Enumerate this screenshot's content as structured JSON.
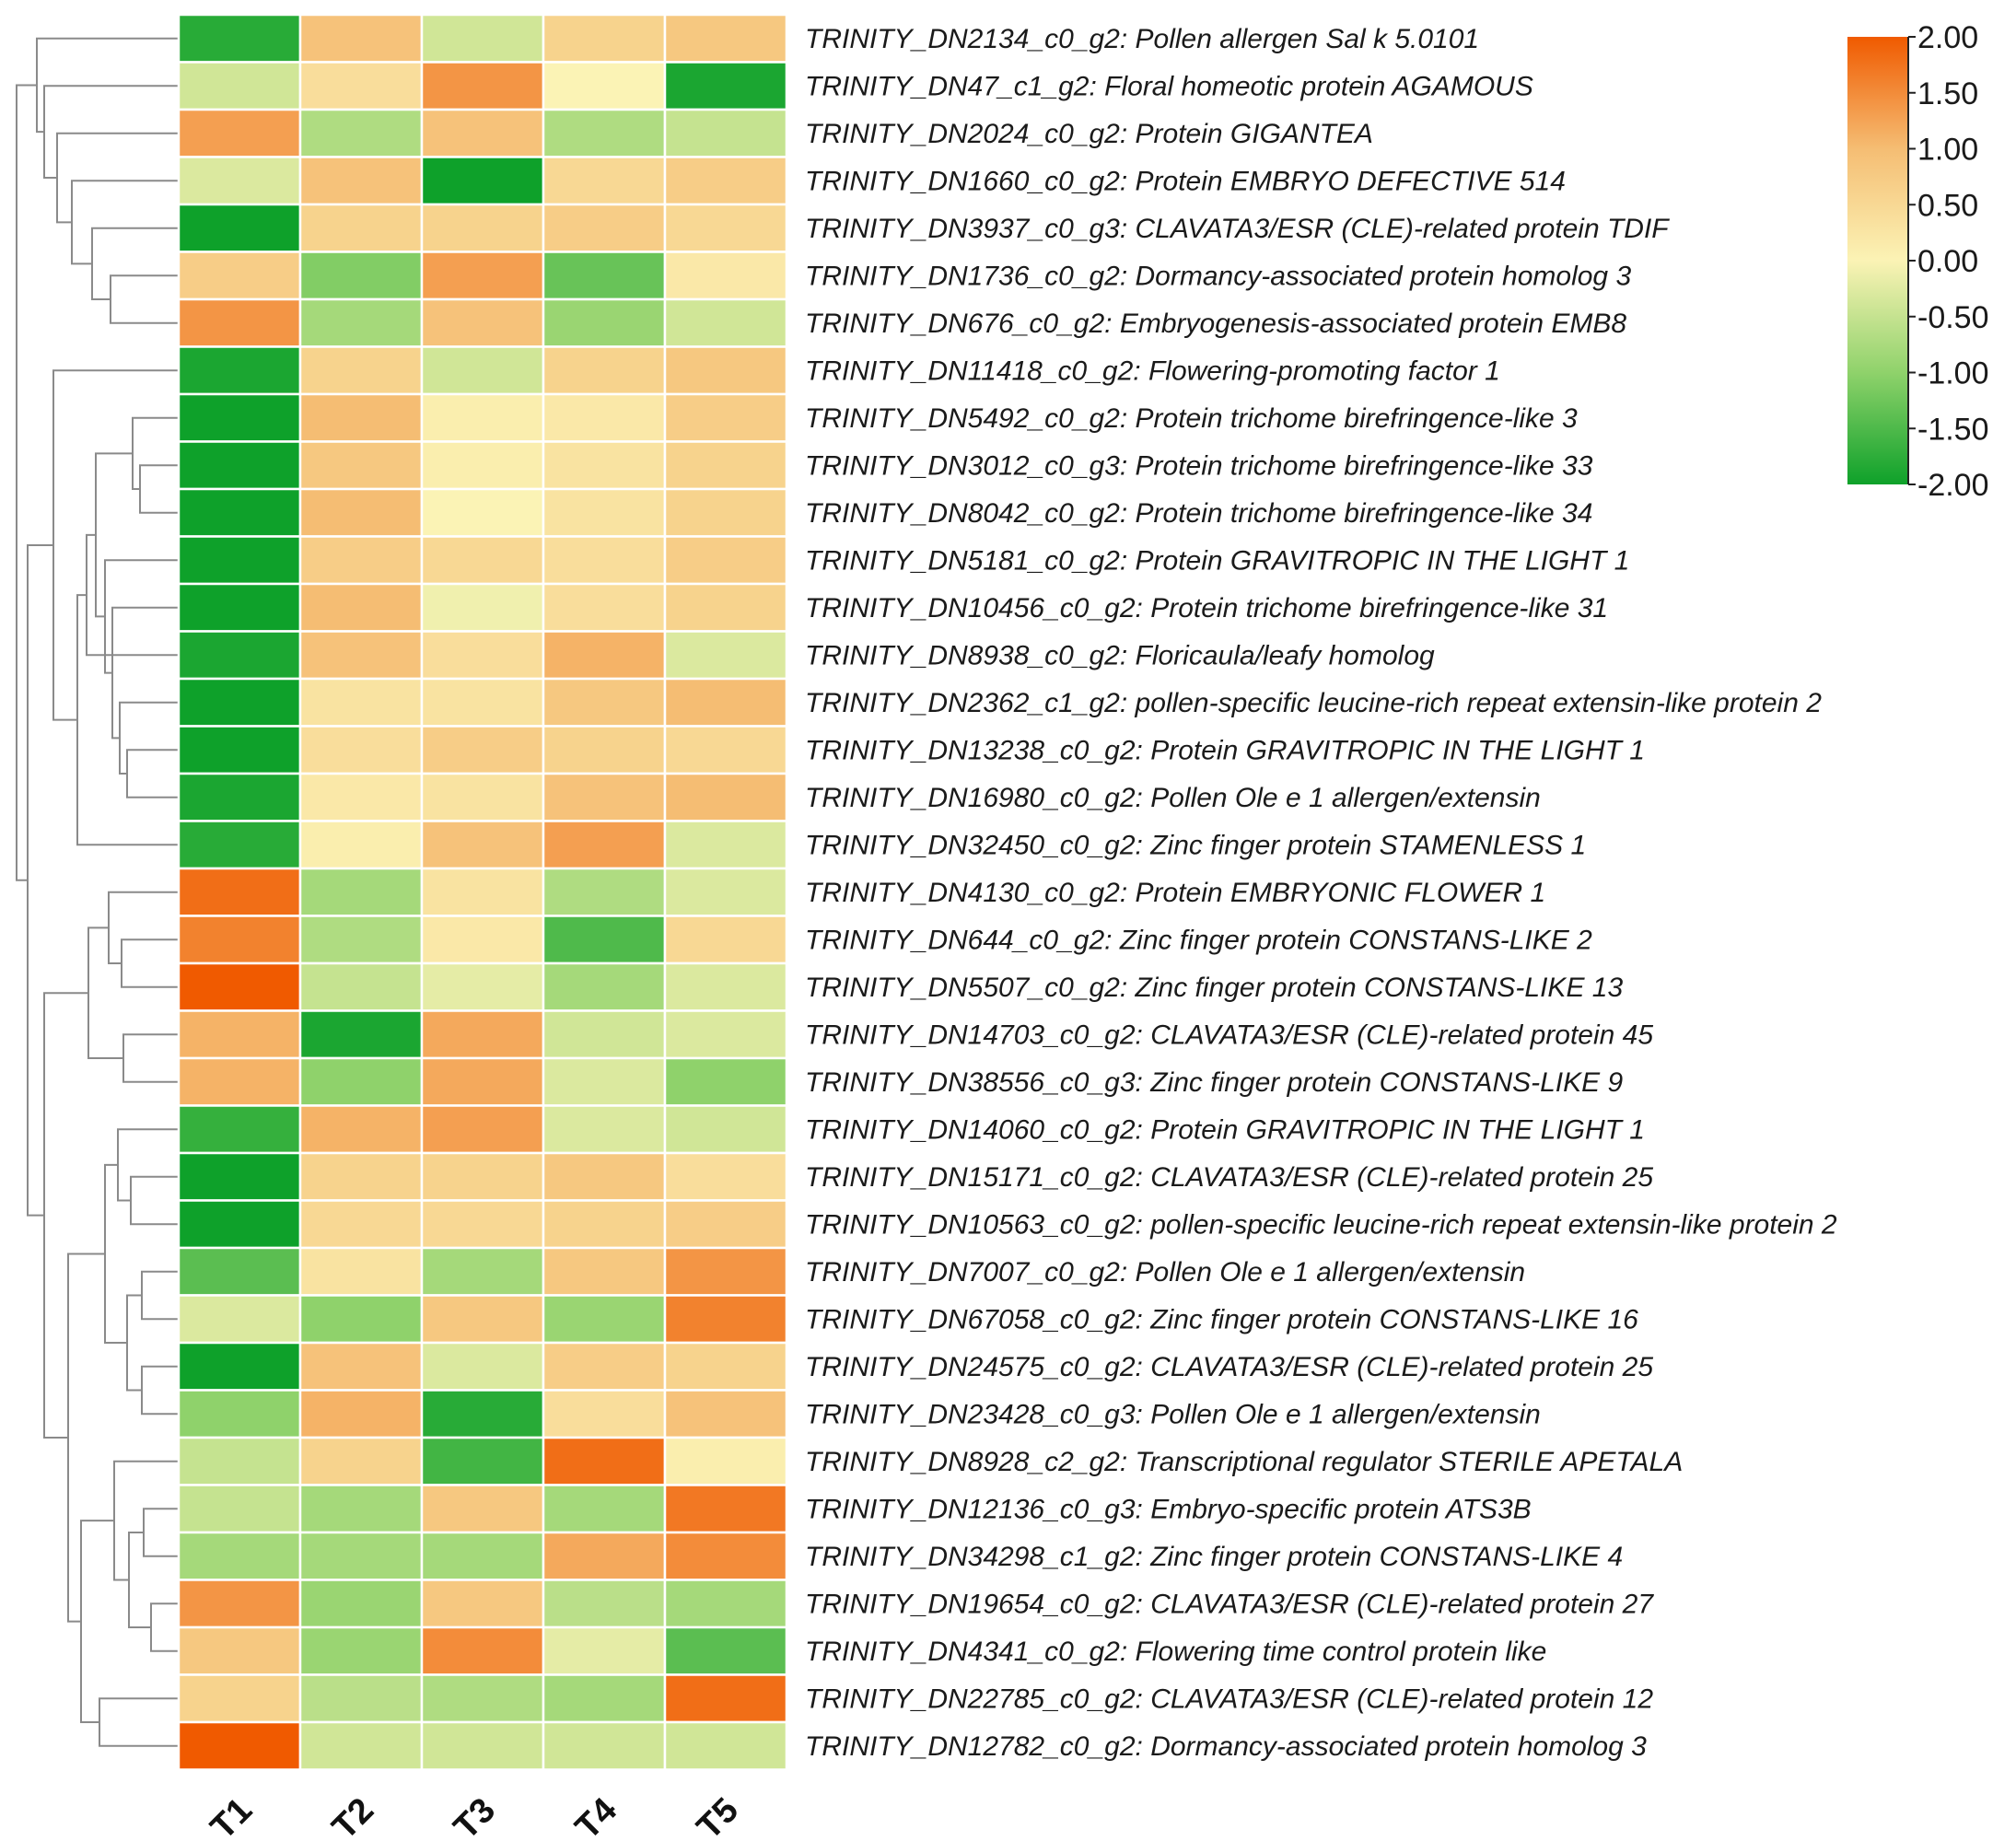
{
  "chart_data": {
    "type": "heatmap",
    "title": "",
    "xlabel": "",
    "ylabel": "",
    "columns": [
      "T1",
      "T2",
      "T3",
      "T4",
      "T5"
    ],
    "rows": [
      {
        "id": "TRINITY_DN2134_c0_g2:",
        "desc": "Pollen allergen Sal k 5.0101",
        "values": [
          -1.8,
          0.9,
          -0.4,
          0.6,
          0.8
        ]
      },
      {
        "id": "TRINITY_DN47_c1_g2:",
        "desc": "Floral homeotic protein AGAMOUS",
        "values": [
          -0.4,
          0.4,
          1.4,
          0.0,
          -1.9
        ]
      },
      {
        "id": "TRINITY_DN2024_c0_g2:",
        "desc": "Protein GIGANTEA",
        "values": [
          1.3,
          -0.7,
          0.9,
          -0.7,
          -0.5
        ]
      },
      {
        "id": "TRINITY_DN1660_c0_g2:",
        "desc": "Protein EMBRYO DEFECTIVE 514",
        "values": [
          -0.3,
          0.9,
          -2.0,
          0.5,
          0.7
        ]
      },
      {
        "id": "TRINITY_DN3937_c0_g3:",
        "desc": "CLAVATA3/ESR (CLE)-related protein TDIF",
        "values": [
          -2.0,
          0.6,
          0.6,
          0.7,
          0.5
        ]
      },
      {
        "id": "TRINITY_DN1736_c0_g2:",
        "desc": "Dormancy-associated protein homolog 3",
        "values": [
          0.7,
          -1.1,
          1.3,
          -1.3,
          0.2
        ]
      },
      {
        "id": "TRINITY_DN676_c0_g2:",
        "desc": "Embryogenesis-associated protein EMB8",
        "values": [
          1.4,
          -0.8,
          0.9,
          -0.9,
          -0.4
        ]
      },
      {
        "id": "TRINITY_DN11418_c0_g2:",
        "desc": "Flowering-promoting factor 1",
        "values": [
          -1.9,
          0.6,
          -0.4,
          0.6,
          0.8
        ]
      },
      {
        "id": "TRINITY_DN5492_c0_g2:",
        "desc": "Protein trichome birefringence-like 3",
        "values": [
          -2.0,
          1.0,
          0.1,
          0.2,
          0.7
        ]
      },
      {
        "id": "TRINITY_DN3012_c0_g3:",
        "desc": "Protein trichome birefringence-like 33",
        "values": [
          -2.0,
          0.8,
          0.1,
          0.3,
          0.6
        ]
      },
      {
        "id": "TRINITY_DN8042_c0_g2:",
        "desc": "Protein trichome birefringence-like 34",
        "values": [
          -2.0,
          1.0,
          0.0,
          0.3,
          0.6
        ]
      },
      {
        "id": "TRINITY_DN5181_c0_g2:",
        "desc": "Protein GRAVITROPIC IN THE LIGHT 1",
        "values": [
          -2.0,
          0.7,
          0.5,
          0.4,
          0.7
        ]
      },
      {
        "id": "TRINITY_DN10456_c0_g2:",
        "desc": "Protein trichome birefringence-like 31",
        "values": [
          -2.0,
          1.0,
          -0.1,
          0.4,
          0.6
        ]
      },
      {
        "id": "TRINITY_DN8938_c0_g2:",
        "desc": "Floricaula/leafy homolog",
        "values": [
          -1.9,
          0.9,
          0.4,
          1.1,
          -0.3
        ]
      },
      {
        "id": "TRINITY_DN2362_c1_g2:",
        "desc": "pollen-specific leucine-rich repeat extensin-like protein 2",
        "values": [
          -2.0,
          0.3,
          0.3,
          0.8,
          1.0
        ]
      },
      {
        "id": "TRINITY_DN13238_c0_g2:",
        "desc": "Protein GRAVITROPIC IN THE LIGHT 1",
        "values": [
          -2.0,
          0.4,
          0.7,
          0.6,
          0.5
        ]
      },
      {
        "id": "TRINITY_DN16980_c0_g2:",
        "desc": "Pollen Ole e 1 allergen/extensin",
        "values": [
          -1.9,
          0.2,
          0.3,
          0.9,
          1.0
        ]
      },
      {
        "id": "TRINITY_DN32450_c0_g2:",
        "desc": "Zinc finger protein STAMENLESS 1",
        "values": [
          -1.8,
          0.1,
          0.9,
          1.3,
          -0.3
        ]
      },
      {
        "id": "TRINITY_DN4130_c0_g2:",
        "desc": "Protein EMBRYONIC FLOWER 1",
        "values": [
          1.8,
          -0.8,
          0.3,
          -0.7,
          -0.3
        ]
      },
      {
        "id": "TRINITY_DN644_c0_g2:",
        "desc": "Zinc finger protein CONSTANS-LIKE 2",
        "values": [
          1.6,
          -0.7,
          0.2,
          -1.5,
          0.5
        ]
      },
      {
        "id": "TRINITY_DN5507_c0_g2:",
        "desc": "Zinc finger protein CONSTANS-LIKE 13",
        "values": [
          2.0,
          -0.5,
          -0.2,
          -0.8,
          -0.3
        ]
      },
      {
        "id": "TRINITY_DN14703_c0_g2:",
        "desc": "CLAVATA3/ESR (CLE)-related protein 45",
        "values": [
          1.1,
          -1.9,
          1.2,
          -0.4,
          -0.3
        ]
      },
      {
        "id": "TRINITY_DN38556_c0_g3:",
        "desc": "Zinc finger protein CONSTANS-LIKE 9",
        "values": [
          1.1,
          -1.0,
          1.2,
          -0.3,
          -1.0
        ]
      },
      {
        "id": "TRINITY_DN14060_c0_g2:",
        "desc": "Protein GRAVITROPIC IN THE LIGHT 1",
        "values": [
          -1.7,
          1.1,
          1.3,
          -0.3,
          -0.4
        ]
      },
      {
        "id": "TRINITY_DN15171_c0_g2:",
        "desc": "CLAVATA3/ESR (CLE)-related protein 25",
        "values": [
          -2.0,
          0.6,
          0.6,
          0.8,
          0.4
        ]
      },
      {
        "id": "TRINITY_DN10563_c0_g2:",
        "desc": "pollen-specific leucine-rich repeat extensin-like protein 2",
        "values": [
          -2.0,
          0.5,
          0.5,
          0.6,
          0.7
        ]
      },
      {
        "id": "TRINITY_DN7007_c0_g2:",
        "desc": "Pollen Ole e 1 allergen/extensin",
        "values": [
          -1.4,
          0.3,
          -0.8,
          0.8,
          1.4
        ]
      },
      {
        "id": "TRINITY_DN67058_c0_g2:",
        "desc": "Zinc finger protein CONSTANS-LIKE 16",
        "values": [
          -0.3,
          -1.0,
          0.8,
          -0.9,
          1.6
        ]
      },
      {
        "id": "TRINITY_DN24575_c0_g2:",
        "desc": "CLAVATA3/ESR (CLE)-related protein 25",
        "values": [
          -2.0,
          0.9,
          -0.3,
          0.7,
          0.6
        ]
      },
      {
        "id": "TRINITY_DN23428_c0_g3:",
        "desc": "Pollen Ole e 1 allergen/extensin",
        "values": [
          -1.0,
          1.1,
          -1.8,
          0.4,
          0.9
        ]
      },
      {
        "id": "TRINITY_DN8928_c2_g2:",
        "desc": "Transcriptional regulator STERILE APETALA",
        "values": [
          -0.5,
          0.6,
          -1.6,
          1.8,
          0.1
        ]
      },
      {
        "id": "TRINITY_DN12136_c0_g3:",
        "desc": "Embryo-specific protein ATS3B",
        "values": [
          -0.5,
          -0.8,
          0.8,
          -0.8,
          1.7
        ]
      },
      {
        "id": "TRINITY_DN34298_c1_g2:",
        "desc": "Zinc finger protein CONSTANS-LIKE 4",
        "values": [
          -0.8,
          -0.8,
          -0.8,
          1.2,
          1.5
        ]
      },
      {
        "id": "TRINITY_DN19654_c0_g2:",
        "desc": "CLAVATA3/ESR (CLE)-related protein 27",
        "values": [
          1.4,
          -0.9,
          0.8,
          -0.6,
          -0.8
        ]
      },
      {
        "id": "TRINITY_DN4341_c0_g2:",
        "desc": "Flowering time control protein like",
        "values": [
          0.8,
          -0.9,
          1.5,
          -0.2,
          -1.4
        ]
      },
      {
        "id": "TRINITY_DN22785_c0_g2:",
        "desc": "CLAVATA3/ESR (CLE)-related protein 12",
        "values": [
          0.6,
          -0.6,
          -0.7,
          -0.8,
          1.8
        ]
      },
      {
        "id": "TRINITY_DN12782_c0_g2:",
        "desc": "Dormancy-associated protein homolog 3",
        "values": [
          2.0,
          -0.4,
          -0.4,
          -0.4,
          -0.4
        ]
      }
    ],
    "colorbar": {
      "min": -2.0,
      "max": 2.0,
      "ticks": [
        "2.00",
        "1.50",
        "1.00",
        "0.50",
        "0.00",
        "-0.50",
        "-1.00",
        "-1.50",
        "-2.00"
      ],
      "colors": [
        "#f05a00",
        "#f5bd73",
        "#fbf3b5",
        "#8fd26b",
        "#0ea12a"
      ]
    },
    "dendrogram": true,
    "legend_position": "top-right"
  }
}
